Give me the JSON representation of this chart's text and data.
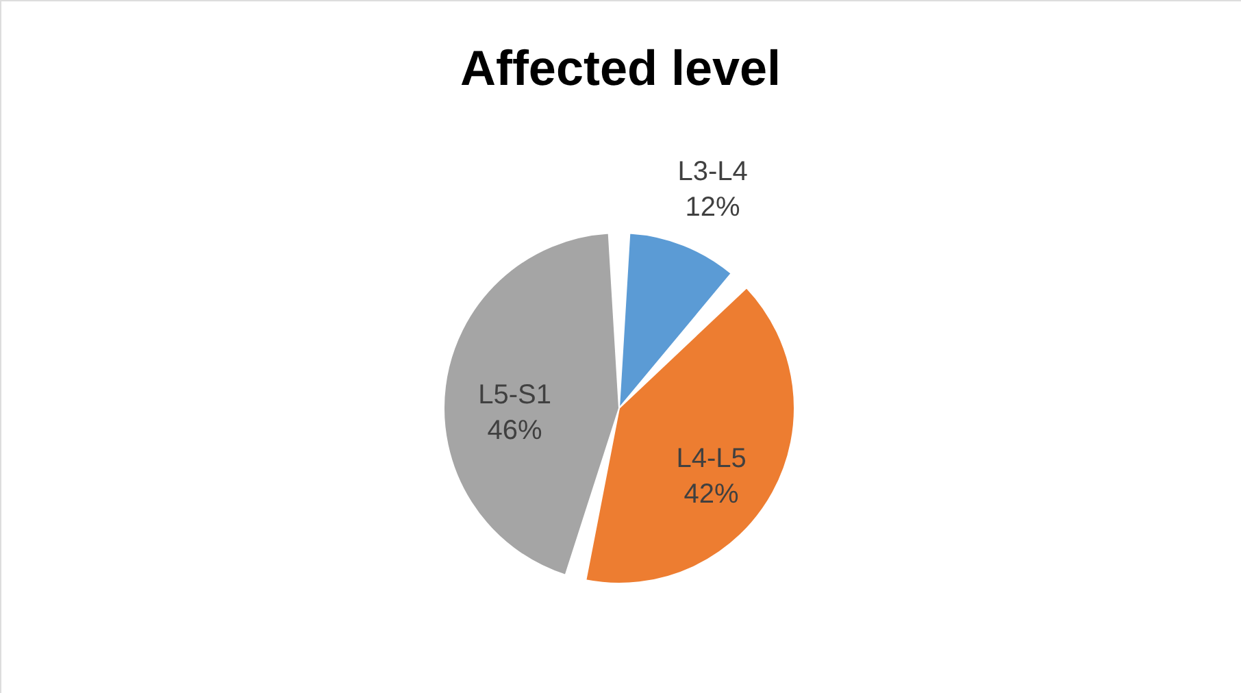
{
  "chart_data": {
    "type": "pie",
    "title": "Affected level",
    "categories": [
      "L3-L4",
      "L4-L5",
      "L5-S1"
    ],
    "values": [
      12,
      42,
      46
    ],
    "colors": [
      "#5b9bd5",
      "#ed7d31",
      "#a5a5a5"
    ],
    "value_labels": [
      "12%",
      "42%",
      "46%"
    ]
  }
}
